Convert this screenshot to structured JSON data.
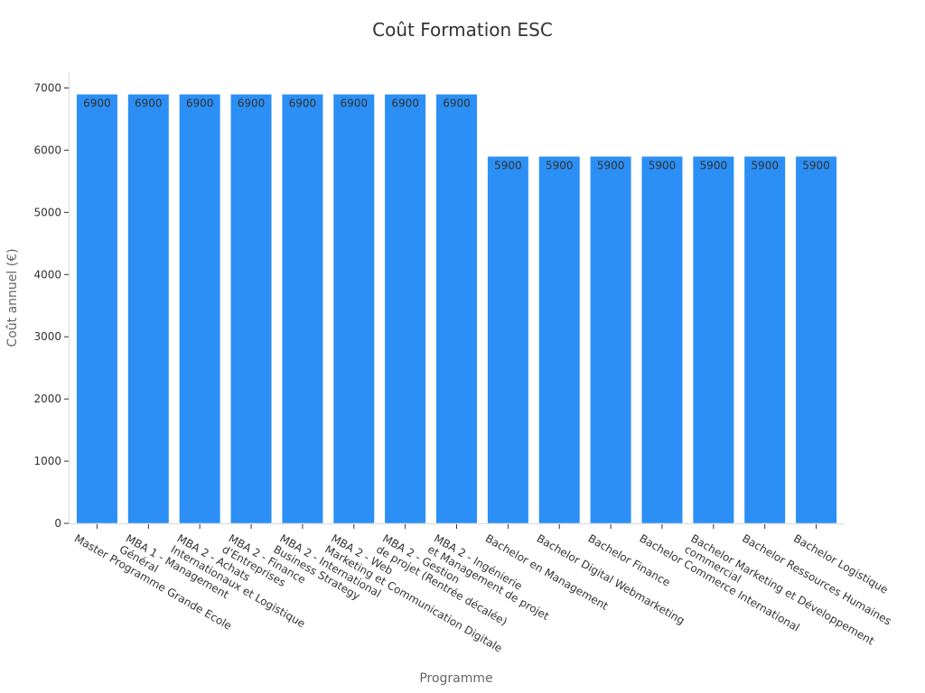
{
  "chart_data": {
    "type": "bar",
    "title": "Coût Formation ESC",
    "xlabel": "Programme",
    "ylabel": "Coût annuel (€)",
    "ylim": [
      0,
      7200
    ],
    "yticks": [
      0,
      1000,
      2000,
      3000,
      4000,
      5000,
      6000,
      7000
    ],
    "grid": false,
    "legend": "none",
    "bar_color": "#2b8ff5",
    "categories": [
      "Master Programme Grande Ecole",
      "MBA 1 - Management\nGénéral",
      "MBA 2 - Achats\nInternationaux et Logistique",
      "MBA 2 - Finance\nd'Entreprises",
      "MBA 2 - International\nBusiness Strategy",
      "MBA 2 - Web\nMarketing et Communication Digitale",
      "MBA 2 - Gestion\nde projet (Rentrée décalée)",
      "MBA 2 - Ingénierie\net Management de projet",
      "Bachelor en Management",
      "Bachelor Digital Webmarketing",
      "Bachelor Finance",
      "Bachelor Commerce International",
      "Bachelor Marketing et Développement\ncommercial",
      "Bachelor Ressources Humaines",
      "Bachelor Logistique"
    ],
    "values": [
      6900,
      6900,
      6900,
      6900,
      6900,
      6900,
      6900,
      6900,
      5900,
      5900,
      5900,
      5900,
      5900,
      5900,
      5900
    ]
  }
}
